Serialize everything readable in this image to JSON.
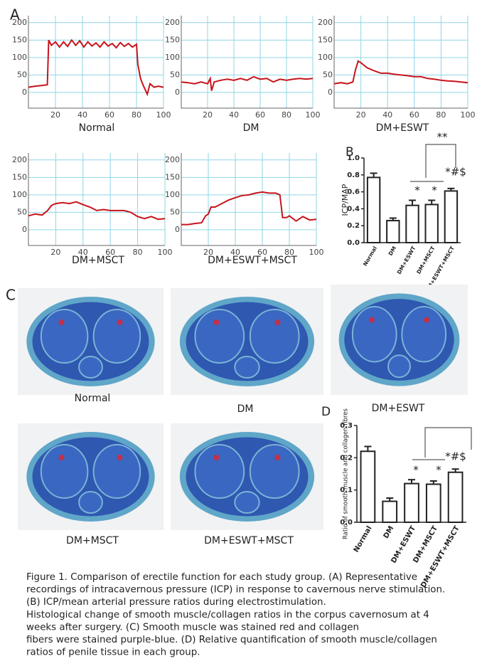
{
  "panels": {
    "a": "A",
    "c": "C"
  },
  "histology": {
    "labels": [
      "Normal",
      "DM",
      "DM+ESWT",
      "DM+MSCT",
      "DM+ESWT+MSCT"
    ]
  },
  "caption": [
    "Figure 1. Comparison of erectile function for each study group. (A) Representative",
    "recordings of intracavernous pressure (ICP) in response to cavernous nerve stimulation.",
    "(B) ICP/mean arterial pressure ratios during electrostimulation.",
    "Histological change of smooth muscle/collagen ratios in the corpus cavernosum at 4",
    "weeks after surgery. (C) Smooth muscle was stained red and collagen",
    "fibers were stained purple-blue. (D) Relative quantification of smooth muscle/collagen",
    "ratios of penile tissue in each group."
  ],
  "chart_data": [
    {
      "type": "line",
      "title": "Normal",
      "color": "#c8141c",
      "grid": true,
      "xlim": [
        0,
        100
      ],
      "ylim": [
        -45,
        220
      ],
      "xticks": [
        20,
        40,
        60,
        80,
        100
      ],
      "yticks": [
        0,
        50,
        100,
        150,
        200
      ],
      "x": [
        0,
        5,
        10,
        14,
        15,
        17,
        20,
        23,
        26,
        29,
        32,
        35,
        38,
        41,
        44,
        47,
        50,
        53,
        56,
        59,
        62,
        65,
        68,
        71,
        74,
        77,
        80,
        81,
        83,
        85,
        88,
        90,
        93,
        96,
        100
      ],
      "values": [
        15,
        18,
        20,
        22,
        150,
        135,
        145,
        130,
        145,
        132,
        150,
        135,
        148,
        130,
        145,
        133,
        142,
        130,
        145,
        133,
        140,
        128,
        143,
        132,
        140,
        130,
        138,
        80,
        40,
        20,
        -5,
        25,
        15,
        18,
        15
      ]
    },
    {
      "type": "line",
      "title": "DM",
      "color": "#c8141c",
      "grid": true,
      "xlim": [
        0,
        100
      ],
      "ylim": [
        -45,
        220
      ],
      "xticks": [
        20,
        40,
        60,
        80,
        100
      ],
      "yticks": [
        0,
        50,
        100,
        150,
        200
      ],
      "x": [
        0,
        5,
        10,
        15,
        20,
        22,
        23,
        25,
        30,
        35,
        40,
        45,
        50,
        55,
        60,
        65,
        70,
        75,
        80,
        85,
        90,
        95,
        100
      ],
      "values": [
        30,
        28,
        25,
        30,
        25,
        40,
        5,
        30,
        35,
        38,
        35,
        40,
        35,
        45,
        38,
        40,
        30,
        38,
        35,
        38,
        40,
        38,
        40
      ]
    },
    {
      "type": "line",
      "title": "DM+ESWT",
      "color": "#c8141c",
      "grid": true,
      "xlim": [
        0,
        100
      ],
      "ylim": [
        -45,
        220
      ],
      "xticks": [
        20,
        40,
        60,
        80,
        100
      ],
      "yticks": [
        0,
        50,
        100,
        150,
        200
      ],
      "x": [
        0,
        5,
        10,
        14,
        16,
        18,
        20,
        25,
        30,
        35,
        40,
        45,
        50,
        55,
        60,
        65,
        70,
        75,
        80,
        85,
        90,
        95,
        100
      ],
      "values": [
        25,
        28,
        25,
        30,
        65,
        90,
        85,
        70,
        62,
        55,
        55,
        52,
        50,
        48,
        45,
        45,
        40,
        38,
        35,
        33,
        32,
        30,
        28
      ]
    },
    {
      "type": "line",
      "title": "DM+MSCT",
      "color": "#c8141c",
      "grid": true,
      "xlim": [
        0,
        100
      ],
      "ylim": [
        -45,
        220
      ],
      "xticks": [
        20,
        40,
        60,
        80,
        100
      ],
      "yticks": [
        0,
        50,
        100,
        150,
        200
      ],
      "x": [
        0,
        5,
        10,
        14,
        17,
        20,
        25,
        30,
        35,
        40,
        45,
        50,
        55,
        60,
        65,
        70,
        75,
        80,
        85,
        90,
        95,
        100
      ],
      "values": [
        40,
        45,
        42,
        55,
        70,
        75,
        78,
        75,
        80,
        72,
        65,
        55,
        58,
        55,
        55,
        55,
        50,
        38,
        32,
        38,
        30,
        32
      ]
    },
    {
      "type": "line",
      "title": "DM+ESWT+MSCT",
      "color": "#c8141c",
      "grid": true,
      "xlim": [
        0,
        100
      ],
      "ylim": [
        -45,
        220
      ],
      "xticks": [
        20,
        40,
        60,
        80,
        100
      ],
      "yticks": [
        0,
        50,
        100,
        150,
        200
      ],
      "x": [
        0,
        5,
        10,
        15,
        18,
        20,
        22,
        25,
        30,
        35,
        40,
        45,
        50,
        55,
        60,
        65,
        70,
        73,
        75,
        78,
        80,
        85,
        90,
        95,
        100
      ],
      "values": [
        15,
        15,
        18,
        20,
        40,
        45,
        65,
        65,
        75,
        85,
        92,
        98,
        100,
        105,
        108,
        105,
        105,
        100,
        35,
        35,
        40,
        25,
        38,
        28,
        30
      ]
    },
    {
      "type": "bar",
      "panel": "B",
      "ylabel": "ICP/MAP",
      "color": "#ffffff",
      "categories": [
        "Normal",
        "DM",
        "DM+ESWT",
        "DM+MSCT",
        "DM+ESWT+MSCT"
      ],
      "values": [
        0.77,
        0.26,
        0.44,
        0.45,
        0.61
      ],
      "errors": [
        0.05,
        0.03,
        0.06,
        0.05,
        0.03
      ],
      "ylim": [
        0,
        1.0
      ],
      "yticks": [
        {
          "value": 0,
          "label": "0.0"
        },
        0.2,
        0.4,
        0.6,
        0.8,
        {
          "value": 1.0,
          "label": "1.0"
        }
      ],
      "annotations": [
        "*",
        "*",
        "*#$",
        "**"
      ]
    },
    {
      "type": "bar",
      "panel": "D",
      "ylabel": "Ratio of smooth muscle and collagen fibres",
      "color": "#ffffff",
      "categories": [
        "Normal",
        "DM",
        "DM+ESWT",
        "DM+MSCT",
        "DM+ESWT+MSCT"
      ],
      "values": [
        0.22,
        0.065,
        0.12,
        0.118,
        0.155
      ],
      "errors": [
        0.015,
        0.01,
        0.012,
        0.01,
        0.01
      ],
      "ylim": [
        0,
        0.3
      ],
      "yticks": [
        {
          "value": 0,
          "label": "0.0"
        },
        0.1,
        0.2,
        0.3
      ],
      "annotations": [
        "*",
        "*",
        "*#$"
      ]
    }
  ]
}
